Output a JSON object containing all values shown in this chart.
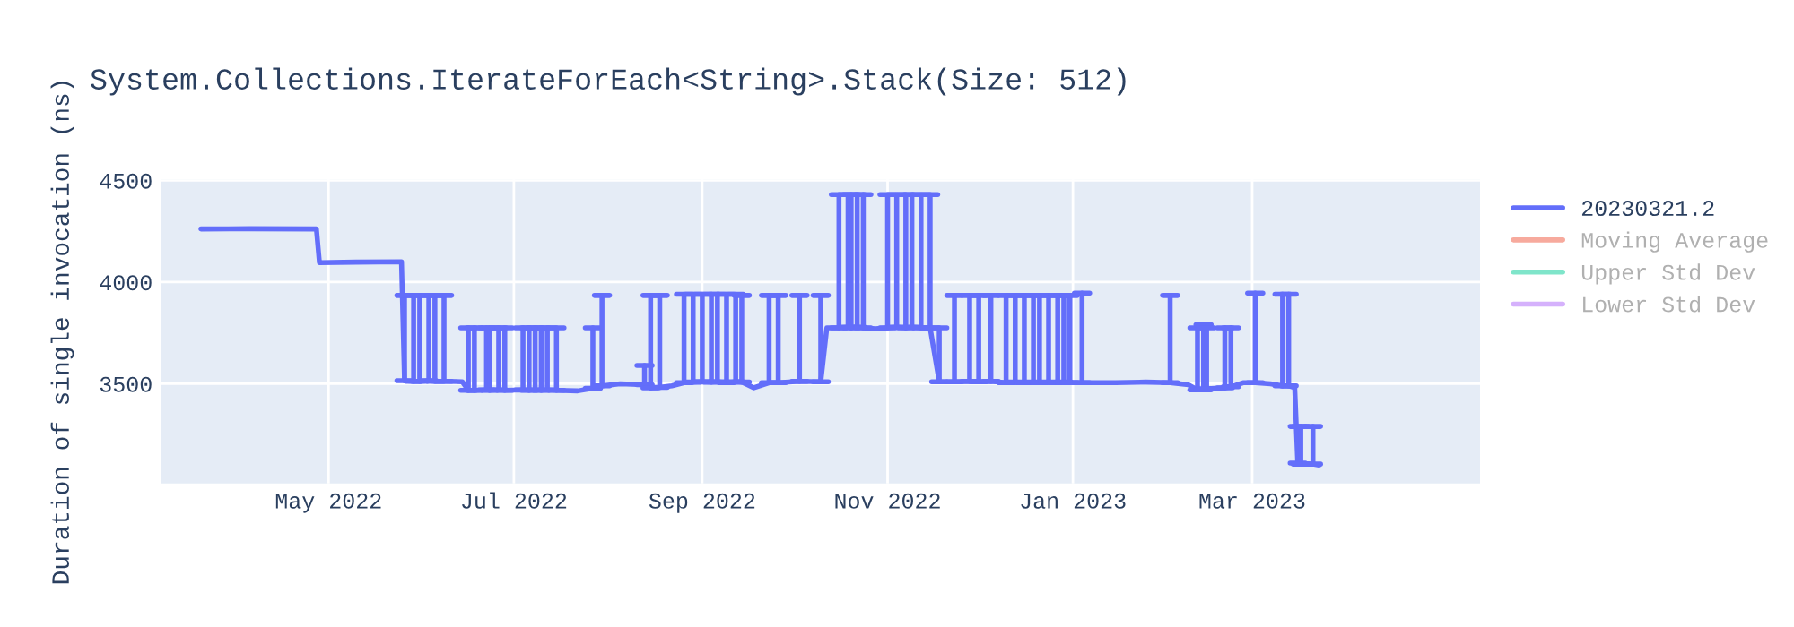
{
  "chart_data": {
    "type": "line",
    "title": "System.Collections.IterateForEach<String>.Stack(Size: 512)",
    "ylabel": "Duration of single invocation (ns)",
    "x": [
      "2022-03-20",
      "2022-04-05",
      "2022-04-27",
      "2022-04-28",
      "2022-05-10",
      "2022-05-25",
      "2022-05-26",
      "2022-05-29",
      "2022-05-31",
      "2022-06-03",
      "2022-06-05",
      "2022-06-08",
      "2022-06-14",
      "2022-06-16",
      "2022-06-18",
      "2022-06-22",
      "2022-06-23",
      "2022-06-26",
      "2022-06-28",
      "2022-07-04",
      "2022-07-06",
      "2022-07-08",
      "2022-07-10",
      "2022-07-12",
      "2022-07-15",
      "2022-07-22",
      "2022-07-27",
      "2022-07-30",
      "2022-08-05",
      "2022-08-13",
      "2022-08-15",
      "2022-08-18",
      "2022-08-22",
      "2022-08-26",
      "2022-08-29",
      "2022-09-01",
      "2022-09-04",
      "2022-09-06",
      "2022-09-09",
      "2022-09-12",
      "2022-09-14",
      "2022-09-18",
      "2022-09-23",
      "2022-09-26",
      "2022-10-03",
      "2022-10-10",
      "2022-10-12",
      "2022-10-16",
      "2022-10-19",
      "2022-10-20",
      "2022-10-22",
      "2022-10-24",
      "2022-10-28",
      "2022-11-01",
      "2022-11-04",
      "2022-11-07",
      "2022-11-09",
      "2022-11-12",
      "2022-11-15",
      "2022-11-18",
      "2022-11-23",
      "2022-11-28",
      "2022-12-01",
      "2022-12-05",
      "2022-12-10",
      "2022-12-13",
      "2022-12-16",
      "2022-12-19",
      "2022-12-21",
      "2022-12-24",
      "2022-12-27",
      "2022-12-29",
      "2022-12-31",
      "2023-01-04",
      "2023-01-15",
      "2023-01-25",
      "2023-02-02",
      "2023-02-08",
      "2023-02-11",
      "2023-02-13",
      "2023-02-14",
      "2023-02-20",
      "2023-02-22",
      "2023-02-26",
      "2023-03-02",
      "2023-03-07",
      "2023-03-11",
      "2023-03-13",
      "2023-03-15",
      "2023-03-16",
      "2023-03-17",
      "2023-03-21",
      "2023-03-23"
    ],
    "series": [
      {
        "name": "20230321.2",
        "color": "#636efa",
        "values": [
          4261,
          4262,
          4261,
          4095,
          4098,
          4100,
          3515,
          3512,
          3512,
          3515,
          3512,
          3512,
          3510,
          3468,
          3468,
          3470,
          3468,
          3470,
          3468,
          3470,
          3468,
          3470,
          3468,
          3470,
          3468,
          3465,
          3478,
          3490,
          3500,
          3495,
          3480,
          3482,
          3490,
          3505,
          3508,
          3510,
          3508,
          3510,
          3505,
          3510,
          3508,
          3480,
          3505,
          3505,
          3512,
          3510,
          3775,
          3775,
          3778,
          3775,
          3778,
          3775,
          3770,
          3775,
          3778,
          3775,
          3778,
          3775,
          3775,
          3510,
          3510,
          3512,
          3510,
          3512,
          3505,
          3508,
          3505,
          3508,
          3505,
          3508,
          3505,
          3508,
          3505,
          3505,
          3505,
          3508,
          3505,
          3495,
          3470,
          3470,
          3475,
          3480,
          3485,
          3505,
          3505,
          3500,
          3490,
          3490,
          3480,
          3110,
          3105,
          3105,
          3100
        ],
        "errors": [
          null,
          null,
          null,
          null,
          null,
          null,
          [
            3515,
            3934
          ],
          [
            3512,
            3934
          ],
          [
            3512,
            3934
          ],
          [
            3515,
            3934
          ],
          [
            3512,
            3934
          ],
          [
            3512,
            3934
          ],
          null,
          [
            3468,
            3775
          ],
          [
            3468,
            3775
          ],
          [
            3470,
            3775
          ],
          [
            3468,
            3775
          ],
          [
            3470,
            3775
          ],
          [
            3468,
            3775
          ],
          [
            3470,
            3775
          ],
          [
            3468,
            3775
          ],
          [
            3470,
            3775
          ],
          [
            3468,
            3775
          ],
          [
            3470,
            3775
          ],
          [
            3468,
            3775
          ],
          null,
          [
            3478,
            3775
          ],
          [
            3490,
            3934
          ],
          null,
          [
            3495,
            3590
          ],
          [
            3480,
            3934
          ],
          [
            3482,
            3934
          ],
          null,
          [
            3505,
            3940
          ],
          [
            3508,
            3940
          ],
          [
            3510,
            3940
          ],
          [
            3508,
            3940
          ],
          [
            3510,
            3940
          ],
          [
            3505,
            3940
          ],
          [
            3510,
            3940
          ],
          [
            3508,
            3934
          ],
          null,
          [
            3505,
            3934
          ],
          [
            3505,
            3934
          ],
          [
            3512,
            3934
          ],
          [
            3510,
            3934
          ],
          null,
          [
            3775,
            4430
          ],
          [
            3778,
            4430
          ],
          [
            3775,
            4430
          ],
          [
            3778,
            4430
          ],
          [
            3775,
            4430
          ],
          null,
          [
            3775,
            4430
          ],
          [
            3778,
            4430
          ],
          [
            3775,
            4430
          ],
          [
            3778,
            4430
          ],
          [
            3775,
            4430
          ],
          [
            3775,
            4430
          ],
          [
            3510,
            3775
          ],
          [
            3510,
            3934
          ],
          [
            3512,
            3934
          ],
          [
            3510,
            3934
          ],
          [
            3512,
            3934
          ],
          [
            3505,
            3934
          ],
          [
            3508,
            3934
          ],
          [
            3505,
            3934
          ],
          [
            3508,
            3934
          ],
          [
            3505,
            3934
          ],
          [
            3508,
            3934
          ],
          [
            3505,
            3934
          ],
          [
            3508,
            3934
          ],
          [
            3505,
            3934
          ],
          [
            3505,
            3945
          ],
          null,
          null,
          [
            3505,
            3934
          ],
          null,
          [
            3470,
            3775
          ],
          [
            3470,
            3790
          ],
          [
            3475,
            3775
          ],
          [
            3480,
            3775
          ],
          [
            3485,
            3775
          ],
          null,
          [
            3505,
            3945
          ],
          null,
          [
            3490,
            3940
          ],
          [
            3490,
            3940
          ],
          null,
          [
            3110,
            3290
          ],
          [
            3105,
            3290
          ],
          [
            3105,
            3290
          ],
          null
        ]
      },
      {
        "name": "Moving Average",
        "color": "#ef553b",
        "values": [
          null,
          null,
          null,
          null,
          null,
          null,
          null,
          null,
          null,
          null,
          null,
          null,
          null,
          null,
          null,
          null,
          null,
          null,
          null,
          null,
          null,
          null,
          null,
          null,
          null,
          null,
          null,
          null,
          null,
          null,
          null,
          null,
          null,
          null,
          null,
          null,
          null,
          null,
          null,
          null,
          null,
          null,
          null,
          null,
          null,
          null,
          null,
          null,
          null,
          null,
          null,
          null,
          null,
          null,
          null,
          null,
          null,
          null,
          null,
          null,
          null,
          null,
          null,
          null,
          null,
          null,
          null,
          null,
          null,
          null,
          null,
          null,
          null,
          null,
          null,
          null,
          null,
          null,
          null,
          null,
          null,
          null,
          null,
          null,
          null,
          null,
          null,
          null,
          null,
          null,
          null,
          null,
          null
        ]
      },
      {
        "name": "Upper Std Dev",
        "color": "#00cc96",
        "values": [
          null,
          null,
          null,
          null,
          null,
          null,
          null,
          null,
          null,
          null,
          null,
          null,
          null,
          null,
          null,
          null,
          null,
          null,
          null,
          null,
          null,
          null,
          null,
          null,
          null,
          null,
          null,
          null,
          null,
          null,
          null,
          null,
          null,
          null,
          null,
          null,
          null,
          null,
          null,
          null,
          null,
          null,
          null,
          null,
          null,
          null,
          null,
          null,
          null,
          null,
          null,
          null,
          null,
          null,
          null,
          null,
          null,
          null,
          null,
          null,
          null,
          null,
          null,
          null,
          null,
          null,
          null,
          null,
          null,
          null,
          null,
          null,
          null,
          null,
          null,
          null,
          null,
          null,
          null,
          null,
          null,
          null,
          null,
          null,
          null,
          null,
          null,
          null,
          null,
          null,
          null,
          null,
          null
        ]
      },
      {
        "name": "Lower Std Dev",
        "color": "#ab63fa",
        "values": [
          null,
          null,
          null,
          null,
          null,
          null,
          null,
          null,
          null,
          null,
          null,
          null,
          null,
          null,
          null,
          null,
          null,
          null,
          null,
          null,
          null,
          null,
          null,
          null,
          null,
          null,
          null,
          null,
          null,
          null,
          null,
          null,
          null,
          null,
          null,
          null,
          null,
          null,
          null,
          null,
          null,
          null,
          null,
          null,
          null,
          null,
          null,
          null,
          null,
          null,
          null,
          null,
          null,
          null,
          null,
          null,
          null,
          null,
          null,
          null,
          null,
          null,
          null,
          null,
          null,
          null,
          null,
          null,
          null,
          null,
          null,
          null,
          null,
          null,
          null,
          null,
          null,
          null,
          null,
          null,
          null,
          null,
          null,
          null,
          null,
          null,
          null,
          null,
          null,
          null,
          null,
          null,
          null
        ]
      }
    ],
    "xlim": [
      "2022-03-07",
      "2023-05-15"
    ],
    "xticks": [
      {
        "value": "2022-05-01",
        "label": "May 2022"
      },
      {
        "value": "2022-07-01",
        "label": "Jul 2022"
      },
      {
        "value": "2022-09-01",
        "label": "Sep 2022"
      },
      {
        "value": "2022-11-01",
        "label": "Nov 2022"
      },
      {
        "value": "2023-01-01",
        "label": "Jan 2023"
      },
      {
        "value": "2023-03-01",
        "label": "Mar 2023"
      }
    ],
    "ylim": [
      3010,
      4505
    ],
    "yticks": [
      3500,
      4000,
      4500
    ],
    "grid": true,
    "legend": "top right"
  }
}
